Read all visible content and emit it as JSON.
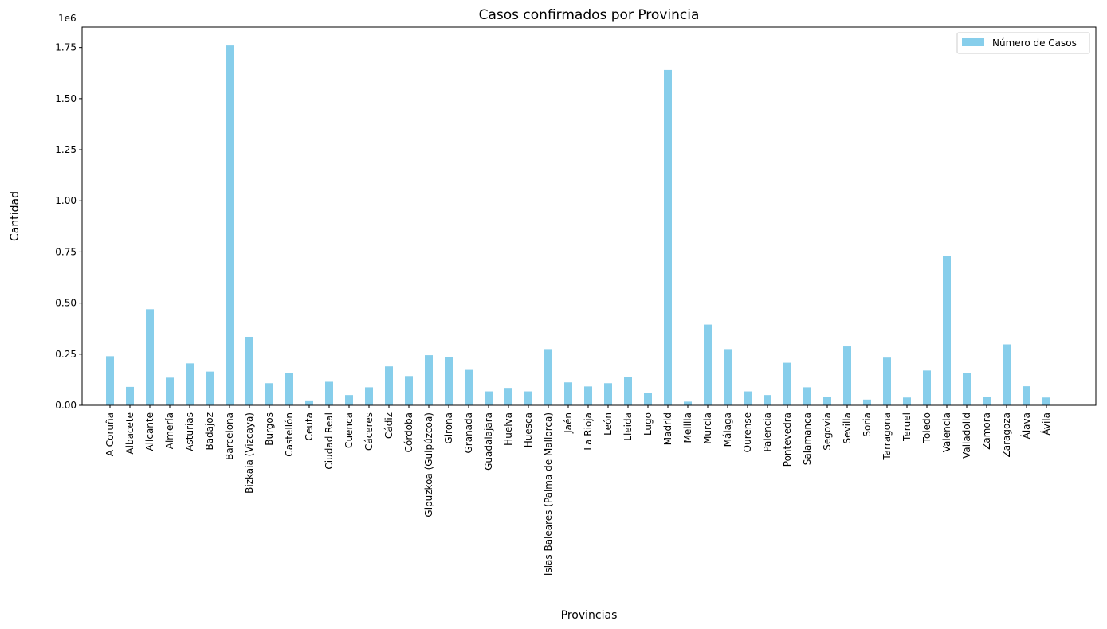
{
  "chart_data": {
    "type": "bar",
    "title": "Casos confirmados por Provincia",
    "xlabel": "Provincias",
    "ylabel": "Cantidad",
    "y_offset_label": "1e6",
    "ylim": [
      0,
      1.85
    ],
    "yticks": [
      "0.00",
      "0.25",
      "0.50",
      "0.75",
      "1.00",
      "1.25",
      "1.50",
      "1.75"
    ],
    "yscale_unit": 1000000,
    "legend": "top-right",
    "grid": false,
    "bar_color": "#87CEEB",
    "categories": [
      "A Coruña",
      "Albacete",
      "Alicante",
      "Almería",
      "Asturias",
      "Badajoz",
      "Barcelona",
      "Bizkaia (Vizcaya)",
      "Burgos",
      "Castellón",
      "Ceuta",
      "Ciudad Real",
      "Cuenca",
      "Cáceres",
      "Cádiz",
      "Córdoba",
      "Gipuzkoa (Guipúzcoa)",
      "Girona",
      "Granada",
      "Guadalajara",
      "Huelva",
      "Huesca",
      "Islas Baleares (Palma de Mallorca)",
      "Jaén",
      "La Rioja",
      "León",
      "Lleida",
      "Lugo",
      "Madrid",
      "Melilla",
      "Murcia",
      "Málaga",
      "Ourense",
      "Palencia",
      "Pontevedra",
      "Salamanca",
      "Segovia",
      "Sevilla",
      "Soria",
      "Tarragona",
      "Teruel",
      "Toledo",
      "Valencia",
      "Valladolid",
      "Zamora",
      "Zaragoza",
      "Álava",
      "Ávila"
    ],
    "series": [
      {
        "name": "Número de Casos",
        "values": [
          240000,
          90000,
          470000,
          135000,
          205000,
          165000,
          1760000,
          335000,
          108000,
          158000,
          20000,
          115000,
          50000,
          88000,
          190000,
          143000,
          245000,
          237000,
          173000,
          68000,
          85000,
          68000,
          275000,
          112000,
          92000,
          108000,
          140000,
          60000,
          1640000,
          18000,
          395000,
          275000,
          68000,
          50000,
          208000,
          88000,
          42000,
          288000,
          28000,
          233000,
          38000,
          170000,
          730000,
          158000,
          42000,
          298000,
          93000,
          38000
        ]
      }
    ]
  }
}
